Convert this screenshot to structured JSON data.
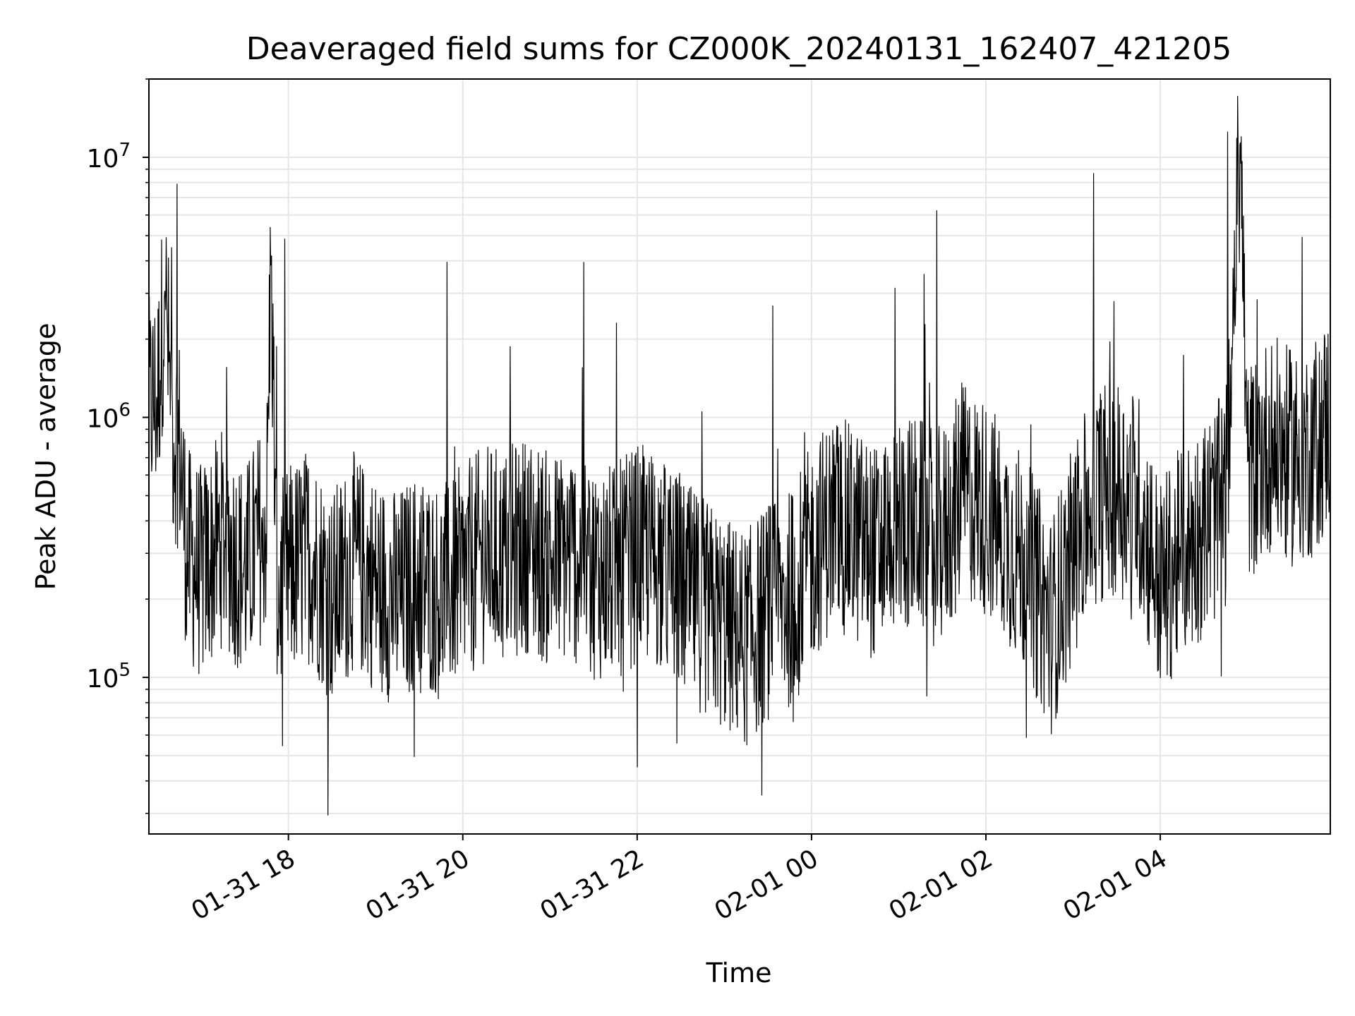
{
  "chart_data": {
    "type": "line",
    "title": "Deaveraged field sums for CZ000K_20240131_162407_421205",
    "xlabel": "Time",
    "ylabel": "Peak ADU - average",
    "yscale": "log",
    "ylim": [
      25000,
      20000000
    ],
    "xlim": [
      "2024-01-31 16:24",
      "2024-02-01 05:57"
    ],
    "grid": true,
    "line_color": "#000000",
    "x_ticks": [
      {
        "time": "2024-01-31 18:00",
        "label": "01-31 18"
      },
      {
        "time": "2024-01-31 20:00",
        "label": "01-31 20"
      },
      {
        "time": "2024-01-31 22:00",
        "label": "01-31 22"
      },
      {
        "time": "2024-02-01 00:00",
        "label": "02-01 00"
      },
      {
        "time": "2024-02-01 02:00",
        "label": "02-01 02"
      },
      {
        "time": "2024-02-01 04:00",
        "label": "02-01 04"
      }
    ],
    "y_ticks": [
      {
        "value": 100000,
        "base": "10",
        "exp": "5"
      },
      {
        "value": 1000000,
        "base": "10",
        "exp": "6"
      },
      {
        "value": 10000000,
        "base": "10",
        "exp": "7"
      }
    ],
    "series": [
      {
        "x": [
          "2024-01-31 16:24",
          "2024-01-31 16:30",
          "2024-01-31 16:35",
          "2024-01-31 16:40",
          "2024-01-31 16:45",
          "2024-01-31 16:50",
          "2024-01-31 17:00",
          "2024-01-31 17:15",
          "2024-01-31 17:30",
          "2024-01-31 17:45",
          "2024-01-31 17:48",
          "2024-01-31 17:52",
          "2024-01-31 18:00",
          "2024-01-31 18:15",
          "2024-01-31 18:30",
          "2024-01-31 18:45",
          "2024-01-31 19:00",
          "2024-01-31 19:15",
          "2024-01-31 19:30",
          "2024-01-31 19:45",
          "2024-01-31 20:00",
          "2024-01-31 20:15",
          "2024-01-31 20:30",
          "2024-01-31 20:45",
          "2024-01-31 21:00",
          "2024-01-31 21:15",
          "2024-01-31 21:30",
          "2024-01-31 21:45",
          "2024-01-31 22:00",
          "2024-01-31 22:15",
          "2024-01-31 22:30",
          "2024-01-31 22:45",
          "2024-01-31 23:00",
          "2024-01-31 23:15",
          "2024-01-31 23:30",
          "2024-01-31 23:45",
          "2024-02-01 00:00",
          "2024-02-01 00:15",
          "2024-02-01 00:30",
          "2024-02-01 00:45",
          "2024-02-01 01:00",
          "2024-02-01 01:15",
          "2024-02-01 01:30",
          "2024-02-01 01:45",
          "2024-02-01 02:00",
          "2024-02-01 02:15",
          "2024-02-01 02:30",
          "2024-02-01 02:45",
          "2024-02-01 03:00",
          "2024-02-01 03:15",
          "2024-02-01 03:30",
          "2024-02-01 03:45",
          "2024-02-01 04:00",
          "2024-02-01 04:15",
          "2024-02-01 04:30",
          "2024-02-01 04:45",
          "2024-02-01 04:55",
          "2024-02-01 05:00",
          "2024-02-01 05:15",
          "2024-02-01 05:30",
          "2024-02-01 05:45",
          "2024-02-01 05:57"
        ],
        "y": [
          1100000,
          1200000,
          3100000,
          900000,
          800000,
          300000,
          250000,
          350000,
          250000,
          400000,
          4500000,
          200000,
          250000,
          300000,
          200000,
          280000,
          230000,
          200000,
          240000,
          210000,
          250000,
          300000,
          290000,
          330000,
          280000,
          300000,
          260000,
          250000,
          300000,
          280000,
          220000,
          190000,
          160000,
          140000,
          180000,
          200000,
          300000,
          400000,
          350000,
          300000,
          400000,
          380000,
          350000,
          520000,
          450000,
          350000,
          250000,
          160000,
          300000,
          500000,
          550000,
          480000,
          220000,
          300000,
          380000,
          480000,
          12000000,
          600000,
          800000,
          700000,
          750000,
          1000000
        ]
      }
    ]
  }
}
